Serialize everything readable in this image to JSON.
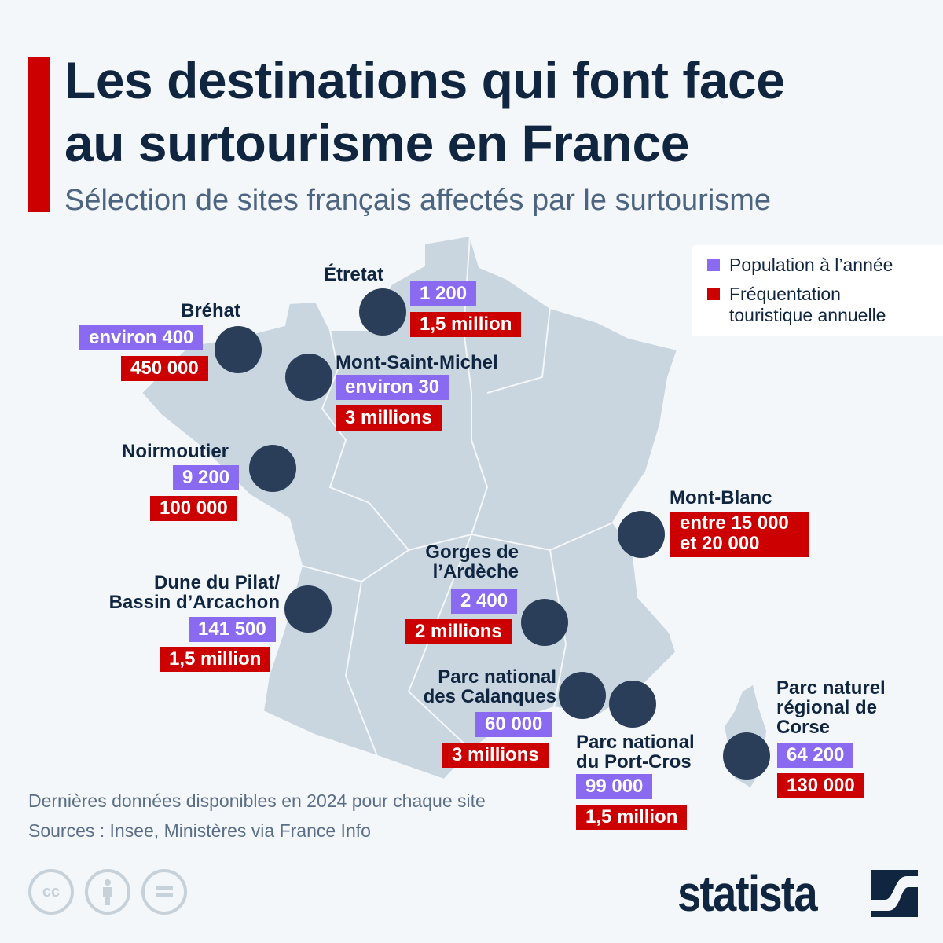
{
  "header": {
    "title_line1": "Les destinations qui font face",
    "title_line2": "au surtourisme en France",
    "subtitle": "Sélection de sites français affectés par le surtourisme"
  },
  "legend": {
    "population": "Population à l’année",
    "frequentation": "Fréquentation touristique annuelle",
    "colors": {
      "population": "#8a6af0",
      "frequentation": "#cc0000"
    }
  },
  "sites": [
    {
      "name": "Étretat",
      "population": "1 200",
      "visitors": "1,5 million"
    },
    {
      "name": "Bréhat",
      "population": "environ 400",
      "visitors": "450 000"
    },
    {
      "name": "Mont-Saint-Michel",
      "population": "environ 30",
      "visitors": "3 millions"
    },
    {
      "name": "Noirmoutier",
      "population": "9 200",
      "visitors": "100 000"
    },
    {
      "name": "Mont-Blanc",
      "visitors": "entre 15 000 et 20 000"
    },
    {
      "name": "Dune du Pilat/ Bassin d’Arcachon",
      "population": "141 500",
      "visitors": "1,5 million"
    },
    {
      "name": "Gorges de l’Ardèche",
      "population": "2 400",
      "visitors": "2 millions"
    },
    {
      "name": "Parc national des Calanques",
      "population": "60 000",
      "visitors": "3 millions"
    },
    {
      "name": "Parc national du Port-Cros",
      "population": "99 000",
      "visitors": "1,5 million"
    },
    {
      "name": "Parc naturel régional de Corse",
      "population": "64 200",
      "visitors": "130 000"
    }
  ],
  "footer": {
    "note": "Dernières données disponibles en 2024 pour chaque site",
    "sources": "Sources : Insee, Ministères via France Info",
    "brand": "statista",
    "license_icons": [
      "cc-icon",
      "attribution-icon",
      "no-derivatives-icon"
    ]
  }
}
